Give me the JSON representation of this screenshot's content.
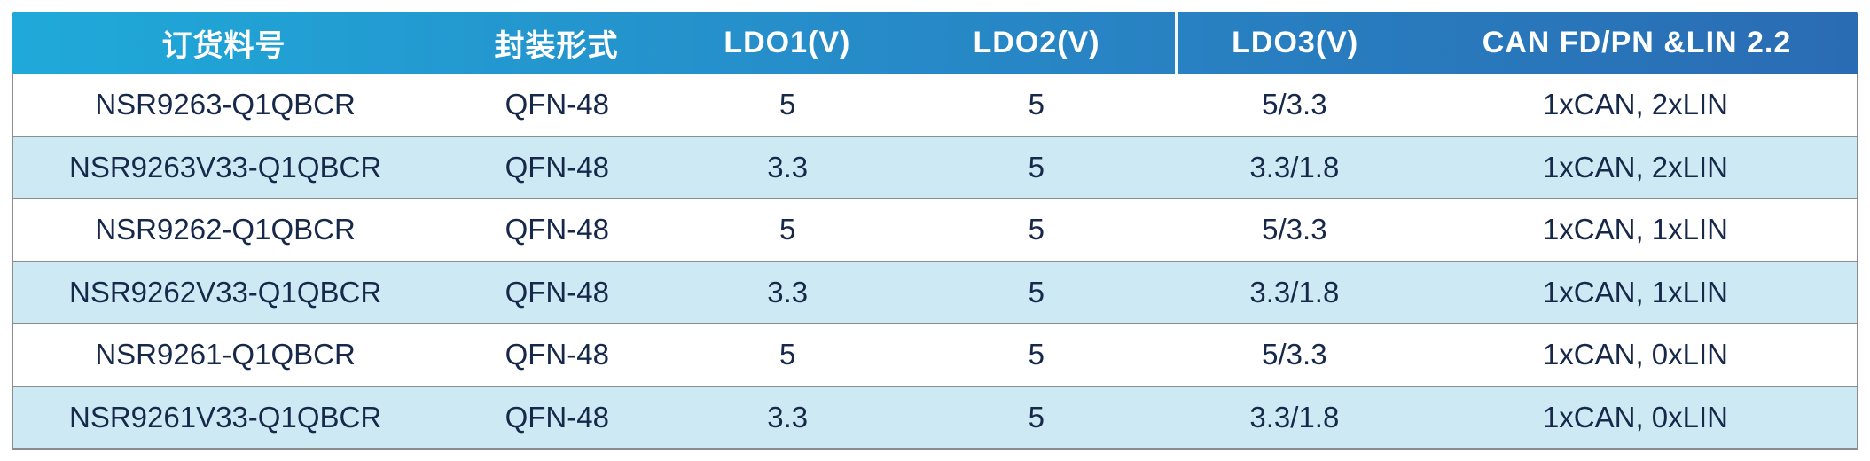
{
  "table": {
    "columns": [
      {
        "label": "订货料号"
      },
      {
        "label": "封装形式"
      },
      {
        "label": "LDO1(V)"
      },
      {
        "label": "LDO2(V)"
      },
      {
        "label": "LDO3(V)"
      },
      {
        "label": "CAN FD/PN &LIN 2.2"
      }
    ],
    "rows": [
      [
        "NSR9263-Q1QBCR",
        "QFN-48",
        "5",
        "5",
        "5/3.3",
        "1xCAN, 2xLIN"
      ],
      [
        "NSR9263V33-Q1QBCR",
        "QFN-48",
        "3.3",
        "5",
        "3.3/1.8",
        "1xCAN, 2xLIN"
      ],
      [
        "NSR9262-Q1QBCR",
        "QFN-48",
        "5",
        "5",
        "5/3.3",
        "1xCAN, 1xLIN"
      ],
      [
        "NSR9262V33-Q1QBCR",
        "QFN-48",
        "3.3",
        "5",
        "3.3/1.8",
        "1xCAN, 1xLIN"
      ],
      [
        "NSR9261-Q1QBCR",
        "QFN-48",
        "5",
        "5",
        "5/3.3",
        "1xCAN, 0xLIN"
      ],
      [
        "NSR9261V33-Q1QBCR",
        "QFN-48",
        "3.3",
        "5",
        "3.3/1.8",
        "1xCAN, 0xLIN"
      ]
    ]
  },
  "colors": {
    "header_gradient_start": "#1FA9D9",
    "header_gradient_end": "#2A6CB4",
    "header_text": "#FFFFFF",
    "row_background": "#FFFFFF",
    "row_alt_background": "#CDEAF4",
    "body_text": "#17294A",
    "border": "#8C8C8C"
  }
}
